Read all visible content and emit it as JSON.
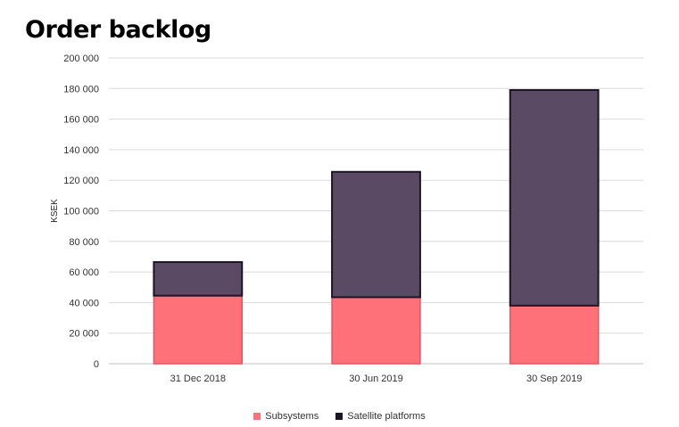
{
  "chart_data": {
    "type": "bar",
    "stacked": true,
    "title": "Order backlog",
    "ylabel": "KSEK",
    "xlabel": "",
    "ylim": [
      0,
      200000
    ],
    "yticks": [
      0,
      20000,
      40000,
      60000,
      80000,
      100000,
      120000,
      140000,
      160000,
      180000,
      200000
    ],
    "ytick_labels": [
      "0",
      "20 000",
      "40 000",
      "60 000",
      "80 000",
      "100 000",
      "120 000",
      "140 000",
      "160 000",
      "180 000",
      "200 000"
    ],
    "categories": [
      "31 Dec 2018",
      "30 Jun 2019",
      "30 Sep 2019"
    ],
    "series": [
      {
        "name": "Subsystems",
        "color": "#ff7178",
        "border": "#e8525c",
        "values": [
          44500,
          43500,
          38000
        ]
      },
      {
        "name": "Satellite platforms",
        "color": "#5a4a63",
        "border": "#1c1526",
        "values": [
          22000,
          82000,
          141000
        ]
      }
    ],
    "grid": true,
    "legend": "bottom"
  }
}
